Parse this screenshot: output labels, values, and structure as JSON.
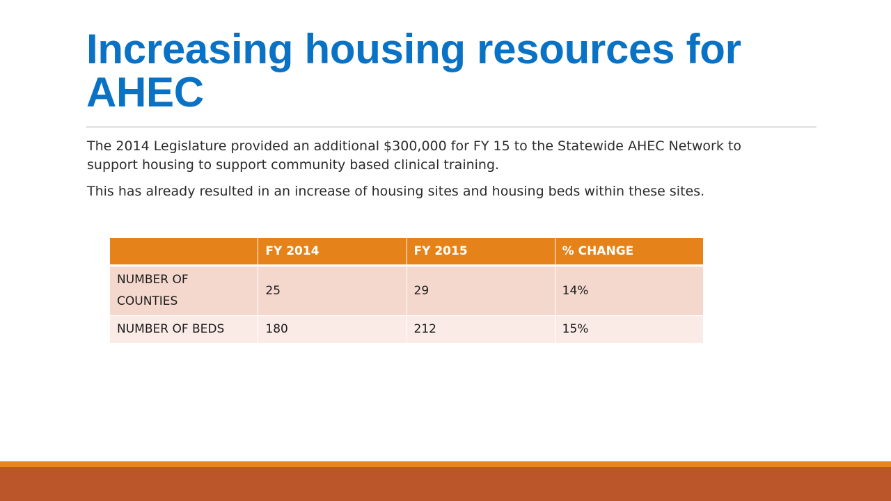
{
  "slide": {
    "title": "Increasing housing resources for AHEC",
    "paragraphs": [
      "The 2014 Legislature provided an additional $300,000 for FY 15  to the Statewide AHEC Network to support housing to support community based clinical training.",
      "This has already resulted in an increase of housing sites and housing beds within these sites."
    ]
  },
  "table": {
    "headers": [
      "",
      "FY 2014",
      "FY 2015",
      "% CHANGE"
    ],
    "rows": [
      [
        "NUMBER OF COUNTIES",
        "25",
        "29",
        "14%"
      ],
      [
        "NUMBER OF BEDS",
        "180",
        "212",
        "15%"
      ]
    ]
  },
  "colors": {
    "title": "#0a72c4",
    "table_header": "#e5821a",
    "table_row_odd": "#f4d8cd",
    "table_row_even": "#fbebe6",
    "footer_line": "#e8851d",
    "footer_bar": "#bb562b"
  }
}
